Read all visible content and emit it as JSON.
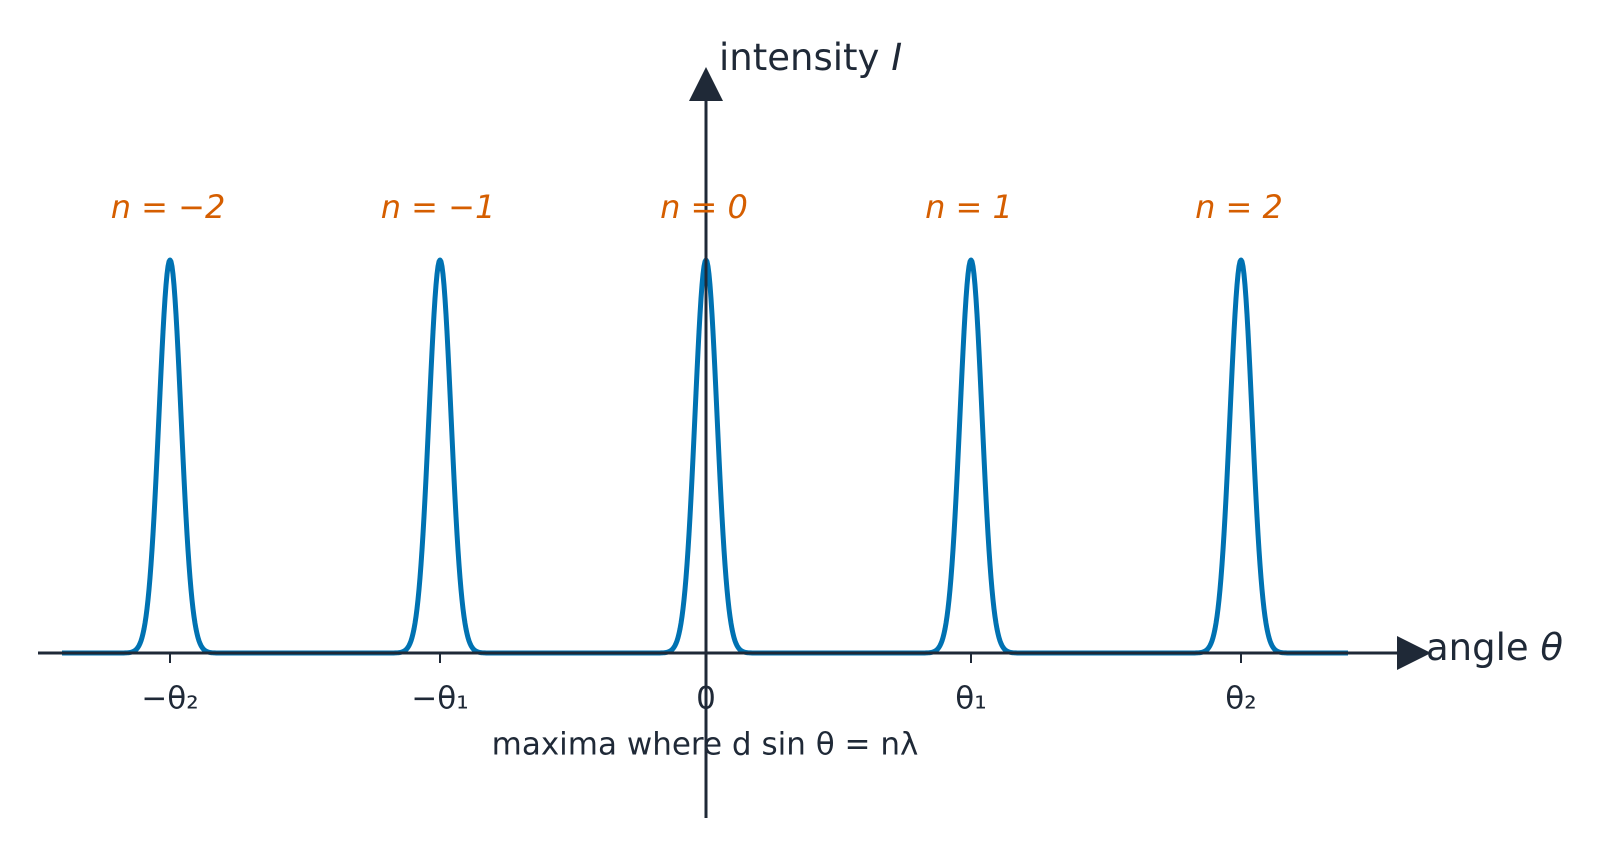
{
  "axes": {
    "y_label": {
      "text": "intensity",
      "symbol": "I"
    },
    "x_label": {
      "text": "angle",
      "symbol": "θ"
    }
  },
  "ticks": [
    "−θ₂",
    "−θ₁",
    "0",
    "θ₁",
    "θ₂"
  ],
  "orders": [
    "n = −2",
    "n = −1",
    "n = 0",
    "n = 1",
    "n = 2"
  ],
  "caption": "maxima where d sin θ = nλ"
}
